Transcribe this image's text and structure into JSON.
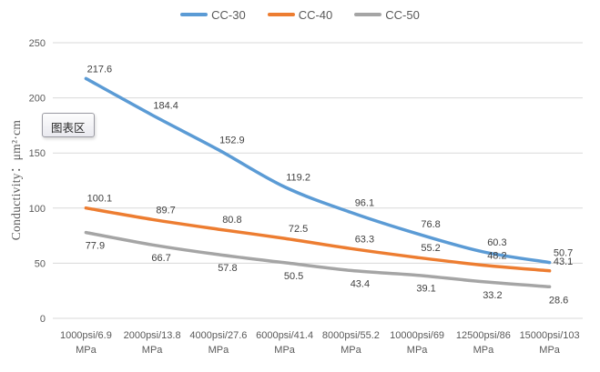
{
  "tooltip": {
    "text": "图表区"
  },
  "chart_data": {
    "type": "line",
    "title": "",
    "xlabel": "",
    "ylabel": "Conductivity：μm²·cm",
    "ylim": [
      0,
      250
    ],
    "yticks": [
      0,
      50,
      100,
      150,
      200,
      250
    ],
    "grid": "horizontal",
    "legend_position": "top",
    "smooth": true,
    "categories": [
      "1000psi/6.9 MPa",
      "2000psi/13.8 MPa",
      "4000psi/27.6 MPa",
      "6000psi/41.4 MPa",
      "8000psi/55.2 MPa",
      "10000psi/69 MPa",
      "12500psi/86 MPa",
      "15000psi/103 MPa"
    ],
    "series": [
      {
        "name": "CC-30",
        "color": "#5B9BD5",
        "label_position": "above",
        "values": [
          217.6,
          184.4,
          152.9,
          119.2,
          96.1,
          76.8,
          60.3,
          50.7
        ]
      },
      {
        "name": "CC-40",
        "color": "#ED7D31",
        "label_position": "above",
        "values": [
          100.1,
          89.7,
          80.8,
          72.5,
          63.3,
          55.2,
          48.2,
          43.1
        ]
      },
      {
        "name": "CC-50",
        "color": "#A5A5A5",
        "label_position": "below",
        "values": [
          77.9,
          66.7,
          57.8,
          50.5,
          43.4,
          39.1,
          33.2,
          28.6
        ]
      }
    ],
    "colors": {
      "gridline": "#D9D9D9",
      "tick_text": "#595959",
      "data_label_text": "#404040"
    }
  }
}
